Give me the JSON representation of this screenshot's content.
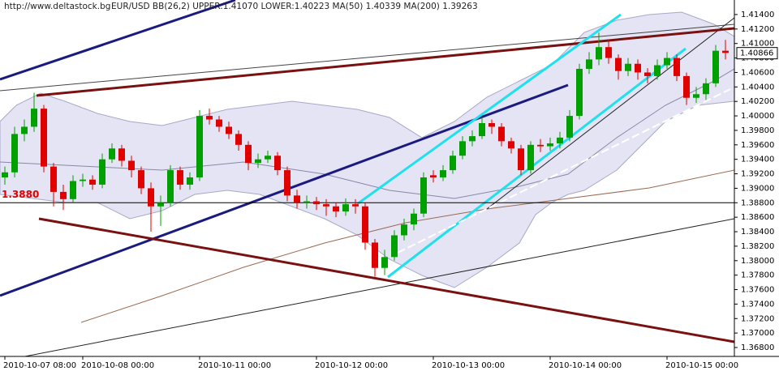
{
  "chart_data": {
    "type": "candlestick",
    "source": "http://www.deltastock.bg",
    "title": "EUR/USD  BB(26,2) UPPER:1.41070  LOWER:1.40223  MA(50) 1.40339  MA(200) 1.39263",
    "level_label": "1.3880",
    "level": 1.388,
    "last_price_label": "1.40866",
    "last_price": 1.40866,
    "up_color": "#00a000",
    "down_color": "#e00000",
    "categories": [
      "2010-10-07 08:00",
      null,
      null,
      null,
      null,
      null,
      null,
      null,
      "2010-10-08 00:00",
      null,
      null,
      null,
      null,
      null,
      null,
      null,
      null,
      null,
      null,
      null,
      "2010-10-11 00:00",
      null,
      null,
      null,
      null,
      null,
      null,
      null,
      null,
      null,
      null,
      null,
      "2010-10-12 00:00",
      null,
      null,
      null,
      null,
      null,
      null,
      null,
      null,
      null,
      null,
      null,
      "2010-10-13 00:00",
      null,
      null,
      null,
      null,
      null,
      null,
      null,
      null,
      null,
      null,
      null,
      "2010-10-14 00:00",
      null,
      null,
      null,
      null,
      null,
      null,
      null,
      null,
      null,
      null,
      null,
      "2010-10-15 00:00",
      null,
      null,
      null,
      null,
      null,
      null
    ],
    "open": [
      1.3915,
      1.3922,
      1.3975,
      1.3985,
      1.401,
      1.393,
      1.3895,
      1.3885,
      1.391,
      1.3912,
      1.3905,
      1.394,
      1.3955,
      1.3938,
      1.3925,
      1.39,
      1.3875,
      1.388,
      1.3925,
      1.3905,
      1.3915,
      1.4,
      1.3995,
      1.3985,
      1.3975,
      1.396,
      1.3935,
      1.394,
      1.3945,
      1.3925,
      1.389,
      1.388,
      1.3882,
      1.3878,
      1.3875,
      1.3868,
      1.3878,
      1.3875,
      1.3825,
      1.379,
      1.3805,
      1.3835,
      1.385,
      1.3865,
      1.3918,
      1.3915,
      1.3925,
      1.3945,
      1.3965,
      1.3972,
      1.399,
      1.3985,
      1.3965,
      1.3955,
      1.3925,
      1.396,
      1.3958,
      1.3962,
      1.397,
      1.4,
      1.4065,
      1.4078,
      1.4095,
      1.408,
      1.4062,
      1.4072,
      1.406,
      1.4055,
      1.407,
      1.408,
      1.4055,
      1.4025,
      1.403,
      1.4045,
      1.409
    ],
    "high": [
      1.393,
      1.3985,
      1.3995,
      1.4032,
      1.4015,
      1.3935,
      1.3905,
      1.3918,
      1.392,
      1.3918,
      1.3948,
      1.3962,
      1.396,
      1.3945,
      1.393,
      1.3908,
      1.389,
      1.3932,
      1.393,
      1.3922,
      1.4008,
      1.401,
      1.4,
      1.3992,
      1.398,
      1.3965,
      1.3948,
      1.3952,
      1.395,
      1.393,
      1.3898,
      1.389,
      1.3888,
      1.3885,
      1.388,
      1.3886,
      1.3885,
      1.388,
      1.383,
      1.3815,
      1.3842,
      1.3858,
      1.3872,
      1.3922,
      1.3925,
      1.3932,
      1.3952,
      1.3972,
      1.398,
      1.3998,
      1.3995,
      1.399,
      1.397,
      1.396,
      1.3965,
      1.3968,
      1.397,
      1.3978,
      1.4008,
      1.4072,
      1.4088,
      1.4115,
      1.4105,
      1.4085,
      1.408,
      1.4078,
      1.4066,
      1.4078,
      1.4088,
      1.4085,
      1.406,
      1.404,
      1.4052,
      1.4098,
      1.4105
    ],
    "low": [
      1.3905,
      1.3915,
      1.3965,
      1.3978,
      1.3922,
      1.3875,
      1.387,
      1.388,
      1.3902,
      1.3898,
      1.39,
      1.3935,
      1.393,
      1.3915,
      1.3892,
      1.384,
      1.3848,
      1.3875,
      1.3898,
      1.3898,
      1.391,
      1.3988,
      1.3978,
      1.3968,
      1.3952,
      1.3925,
      1.3928,
      1.3935,
      1.3918,
      1.3882,
      1.3872,
      1.3872,
      1.387,
      1.3862,
      1.386,
      1.3862,
      1.3865,
      1.3815,
      1.3778,
      1.378,
      1.38,
      1.3828,
      1.3842,
      1.386,
      1.3908,
      1.391,
      1.392,
      1.394,
      1.3958,
      1.3968,
      1.3975,
      1.3958,
      1.3948,
      1.3918,
      1.392,
      1.395,
      1.3952,
      1.3955,
      1.3965,
      1.3995,
      1.4058,
      1.407,
      1.4072,
      1.405,
      1.4055,
      1.405,
      1.4045,
      1.405,
      1.4065,
      1.4048,
      1.4015,
      1.4018,
      1.4022,
      1.404,
      1.4078
    ],
    "close": [
      1.3922,
      1.3975,
      1.3985,
      1.401,
      1.393,
      1.3895,
      1.3885,
      1.391,
      1.3912,
      1.3905,
      1.394,
      1.3955,
      1.3938,
      1.3925,
      1.39,
      1.3875,
      1.388,
      1.3925,
      1.3905,
      1.3915,
      1.4,
      1.3995,
      1.3985,
      1.3975,
      1.396,
      1.3935,
      1.394,
      1.3945,
      1.3925,
      1.389,
      1.388,
      1.3882,
      1.3878,
      1.3875,
      1.3868,
      1.3878,
      1.3875,
      1.3825,
      1.379,
      1.3805,
      1.3835,
      1.385,
      1.3865,
      1.3915,
      1.3915,
      1.3925,
      1.3945,
      1.3965,
      1.3972,
      1.399,
      1.3985,
      1.3965,
      1.3955,
      1.3925,
      1.396,
      1.3958,
      1.3962,
      1.397,
      1.4,
      1.4065,
      1.4078,
      1.4095,
      1.408,
      1.4062,
      1.4072,
      1.406,
      1.4055,
      1.407,
      1.408,
      1.4055,
      1.4025,
      1.403,
      1.4045,
      1.409,
      1.4087
    ],
    "ylim": [
      1.36677,
      1.41601
    ],
    "yticks": [
      {
        "value": 1.414,
        "label": "1.41400"
      },
      {
        "value": 1.412,
        "label": "1.41200"
      },
      {
        "value": 1.41,
        "label": "1.41000"
      },
      {
        "value": 1.408,
        "label": "1.40800"
      },
      {
        "value": 1.406,
        "label": "1.40600"
      },
      {
        "value": 1.404,
        "label": "1.40400"
      },
      {
        "value": 1.402,
        "label": "1.40200"
      },
      {
        "value": 1.4,
        "label": "1.40000"
      },
      {
        "value": 1.398,
        "label": "1.39800"
      },
      {
        "value": 1.396,
        "label": "1.39600"
      },
      {
        "value": 1.394,
        "label": "1.39400"
      },
      {
        "value": 1.392,
        "label": "1.39200"
      },
      {
        "value": 1.39,
        "label": "1.39000"
      },
      {
        "value": 1.388,
        "label": "1.38800"
      },
      {
        "value": 1.386,
        "label": "1.38600"
      },
      {
        "value": 1.384,
        "label": "1.38400"
      },
      {
        "value": 1.382,
        "label": "1.38200"
      },
      {
        "value": 1.38,
        "label": "1.38000"
      },
      {
        "value": 1.378,
        "label": "1.37800"
      },
      {
        "value": 1.376,
        "label": "1.37600"
      },
      {
        "value": 1.374,
        "label": "1.37400"
      },
      {
        "value": 1.372,
        "label": "1.37200"
      },
      {
        "value": 1.37,
        "label": "1.37000"
      },
      {
        "value": 1.368,
        "label": "1.36800"
      }
    ],
    "grid": false
  }
}
